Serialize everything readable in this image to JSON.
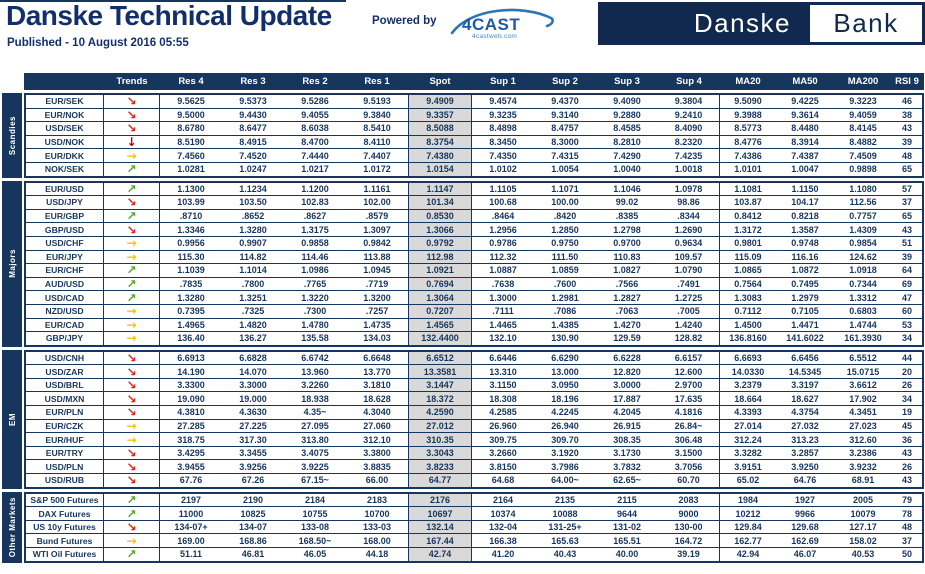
{
  "header": {
    "title": "Danske Technical Update",
    "published": "Published - 10 August 2016 05:55",
    "powered_by_label": "Powered by",
    "fourcast_logo_text": "4CAST",
    "fourcast_logo_sub": "4castweb.com",
    "bank_logo": {
      "left": "Danske",
      "right": "Bank"
    }
  },
  "colors": {
    "navy": "#17365d",
    "title_navy": "#132f6b",
    "logo_navy": "#11294e",
    "spot_bg": "#d9d9d9",
    "fourcast_blue": "#1f5aa8"
  },
  "trends_legend": {
    "down-right": {
      "glyph": "↘",
      "color": "#d5281e"
    },
    "down": {
      "glyph": "↓",
      "color": "#c00000"
    },
    "right": {
      "glyph": "→",
      "color": "#ffc000"
    },
    "up-right": {
      "glyph": "↗",
      "color": "#56a829"
    }
  },
  "table": {
    "columns": [
      "Trends",
      "Res 4",
      "Res 3",
      "Res 2",
      "Res 1",
      "Spot",
      "Sup 1",
      "Sup 2",
      "Sup 3",
      "Sup 4",
      "MA20",
      "MA50",
      "MA200",
      "RSI 9"
    ],
    "groups": [
      {
        "label": "Scandies",
        "rows": [
          {
            "pair": "EUR/SEK",
            "trend": "down-right",
            "values": [
              "9.5625",
              "9.5373",
              "9.5286",
              "9.5193",
              "9.4909",
              "9.4574",
              "9.4370",
              "9.4090",
              "9.3804",
              "9.5090",
              "9.4225",
              "9.3223",
              "46"
            ]
          },
          {
            "pair": "EUR/NOK",
            "trend": "down-right",
            "values": [
              "9.5000",
              "9.4430",
              "9.4055",
              "9.3840",
              "9.3357",
              "9.3235",
              "9.3140",
              "9.2880",
              "9.2410",
              "9.3988",
              "9.3614",
              "9.4059",
              "38"
            ]
          },
          {
            "pair": "USD/SEK",
            "trend": "down-right",
            "values": [
              "8.6780",
              "8.6477",
              "8.6038",
              "8.5410",
              "8.5088",
              "8.4898",
              "8.4757",
              "8.4585",
              "8.4090",
              "8.5773",
              "8.4480",
              "8.4145",
              "43"
            ]
          },
          {
            "pair": "USD/NOK",
            "trend": "down",
            "values": [
              "8.5190",
              "8.4915",
              "8.4700",
              "8.4110",
              "8.3754",
              "8.3450",
              "8.3000",
              "8.2810",
              "8.2320",
              "8.4776",
              "8.3914",
              "8.4882",
              "39"
            ]
          },
          {
            "pair": "EUR/DKK",
            "trend": "right",
            "values": [
              "7.4560",
              "7.4520",
              "7.4440",
              "7.4407",
              "7.4380",
              "7.4350",
              "7.4315",
              "7.4290",
              "7.4235",
              "7.4386",
              "7.4387",
              "7.4509",
              "48"
            ]
          },
          {
            "pair": "NOK/SEK",
            "trend": "up-right",
            "values": [
              "1.0281",
              "1.0247",
              "1.0217",
              "1.0172",
              "1.0154",
              "1.0102",
              "1.0054",
              "1.0040",
              "1.0018",
              "1.0101",
              "1.0047",
              "0.9898",
              "65"
            ]
          }
        ]
      },
      {
        "label": "Majors",
        "rows": [
          {
            "pair": "EUR/USD",
            "trend": "up-right",
            "values": [
              "1.1300",
              "1.1234",
              "1.1200",
              "1.1161",
              "1.1147",
              "1.1105",
              "1.1071",
              "1.1046",
              "1.0978",
              "1.1081",
              "1.1150",
              "1.1080",
              "57"
            ]
          },
          {
            "pair": "USD/JPY",
            "trend": "down-right",
            "values": [
              "103.99",
              "103.50",
              "102.83",
              "102.00",
              "101.34",
              "100.68",
              "100.00",
              "99.02",
              "98.86",
              "103.87",
              "104.17",
              "112.56",
              "37"
            ]
          },
          {
            "pair": "EUR/GBP",
            "trend": "up-right",
            "values": [
              ".8710",
              ".8652",
              ".8627",
              ".8579",
              "0.8530",
              ".8464",
              ".8420",
              ".8385",
              ".8344",
              "0.8412",
              "0.8218",
              "0.7757",
              "65"
            ]
          },
          {
            "pair": "GBP/USD",
            "trend": "down-right",
            "values": [
              "1.3346",
              "1.3280",
              "1.3175",
              "1.3097",
              "1.3066",
              "1.2956",
              "1.2850",
              "1.2798",
              "1.2690",
              "1.3172",
              "1.3587",
              "1.4309",
              "43"
            ]
          },
          {
            "pair": "USD/CHF",
            "trend": "right",
            "values": [
              "0.9956",
              "0.9907",
              "0.9858",
              "0.9842",
              "0.9792",
              "0.9786",
              "0.9750",
              "0.9700",
              "0.9634",
              "0.9801",
              "0.9748",
              "0.9854",
              "51"
            ]
          },
          {
            "pair": "EUR/JPY",
            "trend": "right",
            "values": [
              "115.30",
              "114.82",
              "114.46",
              "113.88",
              "112.98",
              "112.32",
              "111.50",
              "110.83",
              "109.57",
              "115.09",
              "116.16",
              "124.62",
              "39"
            ]
          },
          {
            "pair": "EUR/CHF",
            "trend": "up-right",
            "values": [
              "1.1039",
              "1.1014",
              "1.0986",
              "1.0945",
              "1.0921",
              "1.0887",
              "1.0859",
              "1.0827",
              "1.0790",
              "1.0865",
              "1.0872",
              "1.0918",
              "64"
            ]
          },
          {
            "pair": "AUD/USD",
            "trend": "up-right",
            "values": [
              ".7835",
              ".7800",
              ".7765",
              ".7719",
              "0.7694",
              ".7638",
              ".7600",
              ".7566",
              ".7491",
              "0.7564",
              "0.7495",
              "0.7344",
              "69"
            ]
          },
          {
            "pair": "USD/CAD",
            "trend": "up-right",
            "values": [
              "1.3280",
              "1.3251",
              "1.3220",
              "1.3200",
              "1.3064",
              "1.3000",
              "1.2981",
              "1.2827",
              "1.2725",
              "1.3083",
              "1.2979",
              "1.3312",
              "47"
            ]
          },
          {
            "pair": "NZD/USD",
            "trend": "right",
            "values": [
              "0.7395",
              ".7325",
              ".7300",
              ".7257",
              "0.7207",
              ".7111",
              ".7086",
              ".7063",
              ".7005",
              "0.7112",
              "0.7105",
              "0.6803",
              "60"
            ]
          },
          {
            "pair": "EUR/CAD",
            "trend": "right",
            "values": [
              "1.4965",
              "1.4820",
              "1.4780",
              "1.4735",
              "1.4565",
              "1.4465",
              "1.4385",
              "1.4270",
              "1.4240",
              "1.4500",
              "1.4471",
              "1.4744",
              "53"
            ]
          },
          {
            "pair": "GBP/JPY",
            "trend": "right",
            "values": [
              "136.40",
              "136.27",
              "135.58",
              "134.03",
              "132.4400",
              "132.10",
              "130.90",
              "129.59",
              "128.82",
              "136.8160",
              "141.6022",
              "161.3930",
              "34"
            ]
          }
        ]
      },
      {
        "label": "EM",
        "rows": [
          {
            "pair": "USD/CNH",
            "trend": "down-right",
            "values": [
              "6.6913",
              "6.6828",
              "6.6742",
              "6.6648",
              "6.6512",
              "6.6446",
              "6.6290",
              "6.6228",
              "6.6157",
              "6.6693",
              "6.6456",
              "6.5512",
              "44"
            ]
          },
          {
            "pair": "USD/ZAR",
            "trend": "down-right",
            "values": [
              "14.190",
              "14.070",
              "13.960",
              "13.770",
              "13.3581",
              "13.310",
              "13.000",
              "12.820",
              "12.600",
              "14.0330",
              "14.5345",
              "15.0715",
              "20"
            ]
          },
          {
            "pair": "USD/BRL",
            "trend": "down-right",
            "values": [
              "3.3300",
              "3.3000",
              "3.2260",
              "3.1810",
              "3.1447",
              "3.1150",
              "3.0950",
              "3.0000",
              "2.9700",
              "3.2379",
              "3.3197",
              "3.6612",
              "26"
            ]
          },
          {
            "pair": "USD/MXN",
            "trend": "down-right",
            "values": [
              "19.090",
              "19.000",
              "18.938",
              "18.628",
              "18.372",
              "18.308",
              "18.196",
              "17.887",
              "17.635",
              "18.664",
              "18.627",
              "17.902",
              "34"
            ]
          },
          {
            "pair": "EUR/PLN",
            "trend": "down-right",
            "values": [
              "4.3810",
              "4.3630",
              "4.35~",
              "4.3040",
              "4.2590",
              "4.2585",
              "4.2245",
              "4.2045",
              "4.1816",
              "4.3393",
              "4.3754",
              "4.3451",
              "19"
            ]
          },
          {
            "pair": "EUR/CZK",
            "trend": "right",
            "values": [
              "27.285",
              "27.225",
              "27.095",
              "27.060",
              "27.012",
              "26.960",
              "26.940",
              "26.915",
              "26.84~",
              "27.014",
              "27.032",
              "27.023",
              "45"
            ]
          },
          {
            "pair": "EUR/HUF",
            "trend": "right",
            "values": [
              "318.75",
              "317.30",
              "313.80",
              "312.10",
              "310.35",
              "309.75",
              "309.70",
              "308.35",
              "306.48",
              "312.24",
              "313.23",
              "312.60",
              "36"
            ]
          },
          {
            "pair": "EUR/TRY",
            "trend": "down-right",
            "values": [
              "3.4295",
              "3.3455",
              "3.4075",
              "3.3800",
              "3.3043",
              "3.2660",
              "3.1920",
              "3.1730",
              "3.1500",
              "3.3282",
              "3.2857",
              "3.2386",
              "43"
            ]
          },
          {
            "pair": "USD/PLN",
            "trend": "down-right",
            "values": [
              "3.9455",
              "3.9256",
              "3.9225",
              "3.8835",
              "3.8233",
              "3.8150",
              "3.7986",
              "3.7832",
              "3.7056",
              "3.9151",
              "3.9250",
              "3.9232",
              "26"
            ]
          },
          {
            "pair": "USD/RUB",
            "trend": "down-right",
            "values": [
              "67.76",
              "67.26",
              "67.15~",
              "66.00",
              "64.77",
              "64.68",
              "64.00~",
              "62.65~",
              "60.70",
              "65.02",
              "64.76",
              "68.91",
              "43"
            ]
          }
        ]
      },
      {
        "label": "Other Markets",
        "rows": [
          {
            "pair": "S&P 500 Futures",
            "trend": "up-right",
            "values": [
              "2197",
              "2190",
              "2184",
              "2183",
              "2176",
              "2164",
              "2135",
              "2115",
              "2083",
              "1984",
              "1927",
              "2005",
              "79"
            ]
          },
          {
            "pair": "DAX Futures",
            "trend": "up-right",
            "values": [
              "11000",
              "10825",
              "10755",
              "10700",
              "10697",
              "10374",
              "10088",
              "9644",
              "9000",
              "10212",
              "9966",
              "10079",
              "78"
            ]
          },
          {
            "pair": "US 10y Futures",
            "trend": "down-right",
            "values": [
              "134-07+",
              "134-07",
              "133-08",
              "133-03",
              "132.14",
              "132-04",
              "131-25+",
              "131-02",
              "130-00",
              "129.84",
              "129.68",
              "127.17",
              "48"
            ]
          },
          {
            "pair": "Bund Futures",
            "trend": "right",
            "values": [
              "169.00",
              "168.86",
              "168.50~",
              "168.00",
              "167.44",
              "166.38",
              "165.63",
              "165.51",
              "164.72",
              "162.77",
              "162.69",
              "158.02",
              "37"
            ]
          },
          {
            "pair": "WTI Oil Futures",
            "trend": "up-right",
            "values": [
              "51.11",
              "46.81",
              "46.05",
              "44.18",
              "42.74",
              "41.20",
              "40.43",
              "40.00",
              "39.19",
              "42.94",
              "46.07",
              "40.53",
              "50"
            ]
          }
        ]
      }
    ]
  }
}
